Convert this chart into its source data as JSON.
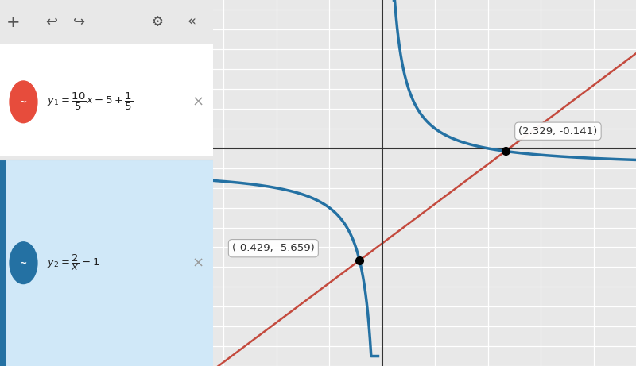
{
  "title": "",
  "background_color": "#e8e8e8",
  "grid_color": "#ffffff",
  "axis_color": "#333333",
  "xlim": [
    -3.2,
    4.8
  ],
  "ylim": [
    -10.5,
    7.5
  ],
  "xticks": [
    -2,
    0,
    2,
    4
  ],
  "yticks": [
    -10,
    -5,
    5
  ],
  "line_color": "#c0392b",
  "curve_color": "#2471a3",
  "point1": [
    -0.429,
    -5.659
  ],
  "point2": [
    2.329,
    -0.141
  ],
  "label1": "(-0.429, -5.659)",
  "label2": "(2.329, -0.141)",
  "panel_bg": "#f5f5f5",
  "panel_border": "#cccccc",
  "toolbar_bg": "#e0e0e0",
  "row2_bg": "#d0e8f8"
}
